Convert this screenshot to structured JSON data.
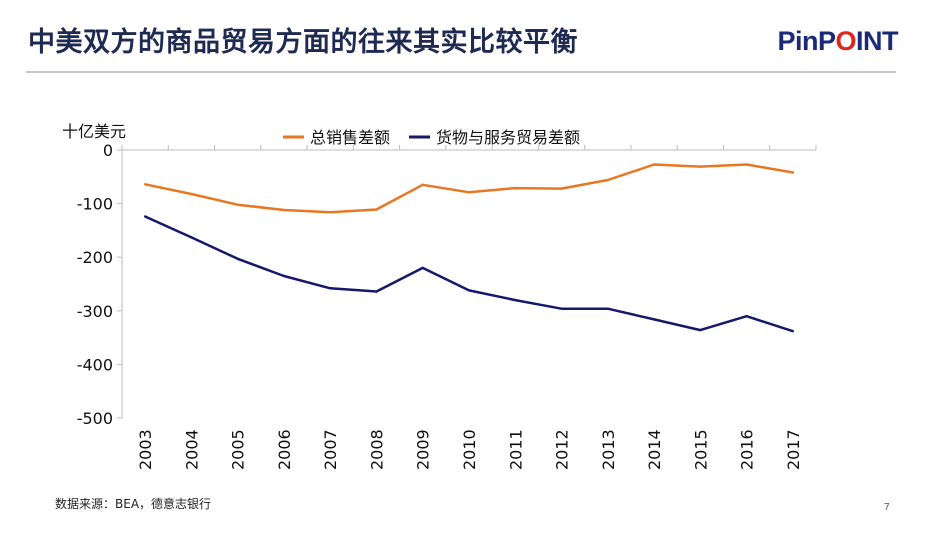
{
  "slide": {
    "title": "中美双方的商品贸易方面的往来其实比较平衡",
    "logo": {
      "pre": "PinP",
      "o": "O",
      "post": "INT"
    },
    "source": "数据来源：BEA，德意志银行",
    "page_number": "7"
  },
  "chart_data": {
    "type": "line",
    "ylabel": "十亿美元",
    "ylim": [
      -500,
      0
    ],
    "yticks": [
      0,
      -100,
      -200,
      -300,
      -400,
      -500
    ],
    "x": [
      "2003",
      "2004",
      "2005",
      "2006",
      "2007",
      "2008",
      "2009",
      "2010",
      "2011",
      "2012",
      "2013",
      "2014",
      "2015",
      "2016",
      "2017"
    ],
    "grid": false,
    "legend_position": "top",
    "series": [
      {
        "name": "总销售差额",
        "color": "#e87722",
        "values": [
          -64,
          -82,
          -102,
          -112,
          -116,
          -111,
          -65,
          -79,
          -71,
          -72,
          -56,
          -27,
          -31,
          -27,
          -42
        ]
      },
      {
        "name": "货物与服务贸易差额",
        "color": "#16196b",
        "values": [
          -124,
          -163,
          -203,
          -235,
          -258,
          -264,
          -220,
          -262,
          -280,
          -296,
          -296,
          -316,
          -336,
          -310,
          -338
        ]
      }
    ]
  }
}
